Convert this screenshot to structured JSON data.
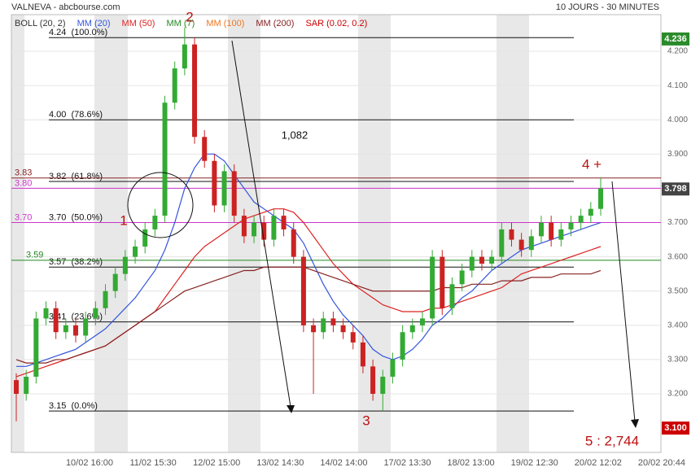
{
  "chart_data": {
    "type": "candlestick",
    "title": "VALNEVA - abcbourse.com",
    "subtitle": "10 JOURS - 30 MINUTES",
    "legend": [
      {
        "name": "BOLL (20, 2)",
        "color": "#333333"
      },
      {
        "name": "MM (20)",
        "color": "#3355dd"
      },
      {
        "name": "MM (50)",
        "color": "#dd2222"
      },
      {
        "name": "MM (7)",
        "color": "#228822"
      },
      {
        "name": "MM (100)",
        "color": "#ee7722"
      },
      {
        "name": "MM (200)",
        "color": "#882222"
      },
      {
        "name": "SAR (0.02, 0.2)",
        "color": "#cc0000"
      }
    ],
    "x_labels": [
      "10/02 16:00",
      "11/02 15:30",
      "12/02 15:00",
      "13/02 14:30",
      "14/02 14:00",
      "17/02 13:30",
      "18/02 13:00",
      "19/02 12:30",
      "20/02 12:02",
      "20/02 20:44"
    ],
    "ylim": [
      3.029,
      4.307
    ],
    "yticks": [
      {
        "value": 3.2,
        "label": "3.200"
      },
      {
        "value": 3.3,
        "label": "3.300"
      },
      {
        "value": 3.4,
        "label": "3.400"
      },
      {
        "value": 3.5,
        "label": "3.500"
      },
      {
        "value": 3.6,
        "label": "3.600"
      },
      {
        "value": 3.7,
        "label": "3.700"
      },
      {
        "value": 3.8,
        "label": "3.800"
      },
      {
        "value": 3.9,
        "label": "3.900"
      },
      {
        "value": 4.0,
        "label": "4.000"
      },
      {
        "value": 4.1,
        "label": "4.100"
      },
      {
        "value": 4.2,
        "label": "4.200"
      }
    ],
    "grid": true,
    "up_color": "#33aa33",
    "down_color": "#cc2222",
    "open": [
      3.24,
      3.2,
      3.25,
      3.42,
      3.45,
      3.38,
      3.4,
      3.37,
      3.42,
      3.45,
      3.5,
      3.55,
      3.6,
      3.63,
      3.68,
      3.72,
      4.05,
      4.15,
      4.22,
      3.95,
      3.88,
      3.75,
      3.85,
      3.72,
      3.66,
      3.7,
      3.65,
      3.72,
      3.68,
      3.6,
      3.4,
      3.38,
      3.42,
      3.4,
      3.38,
      3.35,
      3.28,
      3.2,
      3.25,
      3.3,
      3.38,
      3.4,
      3.42,
      3.6,
      3.45,
      3.52,
      3.56,
      3.6,
      3.58,
      3.6,
      3.68,
      3.65,
      3.62,
      3.66,
      3.7,
      3.65,
      3.68,
      3.7,
      3.72,
      3.74
    ],
    "high": [
      3.26,
      3.27,
      3.44,
      3.47,
      3.47,
      3.42,
      3.42,
      3.44,
      3.47,
      3.52,
      3.57,
      3.62,
      3.65,
      3.7,
      3.74,
      4.07,
      4.17,
      4.27,
      4.24,
      3.97,
      3.9,
      3.87,
      3.87,
      3.74,
      3.72,
      3.72,
      3.74,
      3.74,
      3.7,
      3.62,
      3.42,
      3.44,
      3.44,
      3.42,
      3.4,
      3.37,
      3.3,
      3.27,
      3.32,
      3.4,
      3.42,
      3.44,
      3.62,
      3.62,
      3.54,
      3.58,
      3.62,
      3.62,
      3.62,
      3.7,
      3.7,
      3.67,
      3.68,
      3.72,
      3.72,
      3.7,
      3.72,
      3.74,
      3.76,
      3.83
    ],
    "low": [
      3.12,
      3.18,
      3.23,
      3.4,
      3.36,
      3.36,
      3.35,
      3.35,
      3.4,
      3.43,
      3.48,
      3.53,
      3.58,
      3.61,
      3.66,
      3.7,
      4.03,
      4.13,
      3.93,
      3.86,
      3.73,
      3.73,
      3.7,
      3.64,
      3.64,
      3.63,
      3.63,
      3.66,
      3.58,
      3.38,
      3.2,
      3.36,
      3.38,
      3.36,
      3.33,
      3.26,
      3.18,
      3.15,
      3.23,
      3.28,
      3.36,
      3.38,
      3.4,
      3.43,
      3.43,
      3.5,
      3.54,
      3.56,
      3.56,
      3.58,
      3.63,
      3.6,
      3.6,
      3.64,
      3.63,
      3.63,
      3.66,
      3.68,
      3.7,
      3.72
    ],
    "close": [
      3.2,
      3.25,
      3.42,
      3.45,
      3.38,
      3.4,
      3.37,
      3.42,
      3.45,
      3.5,
      3.55,
      3.6,
      3.63,
      3.68,
      3.72,
      4.05,
      4.15,
      4.22,
      3.95,
      3.88,
      3.75,
      3.85,
      3.72,
      3.66,
      3.7,
      3.65,
      3.72,
      3.68,
      3.6,
      3.4,
      3.38,
      3.42,
      3.4,
      3.38,
      3.35,
      3.28,
      3.2,
      3.25,
      3.3,
      3.38,
      3.4,
      3.42,
      3.6,
      3.45,
      3.52,
      3.56,
      3.6,
      3.58,
      3.6,
      3.68,
      3.65,
      3.62,
      3.66,
      3.7,
      3.65,
      3.68,
      3.7,
      3.72,
      3.74,
      3.8
    ],
    "series": [
      {
        "name": "MM (20)",
        "color": "#3355dd",
        "values": [
          3.28,
          3.28,
          3.29,
          3.3,
          3.31,
          3.32,
          3.33,
          3.35,
          3.37,
          3.39,
          3.42,
          3.45,
          3.48,
          3.52,
          3.56,
          3.62,
          3.7,
          3.8,
          3.86,
          3.9,
          3.9,
          3.88,
          3.84,
          3.8,
          3.76,
          3.74,
          3.72,
          3.7,
          3.68,
          3.64,
          3.58,
          3.52,
          3.47,
          3.43,
          3.4,
          3.37,
          3.33,
          3.31,
          3.3,
          3.31,
          3.33,
          3.36,
          3.4,
          3.42,
          3.45,
          3.48,
          3.5,
          3.53,
          3.56,
          3.58,
          3.6,
          3.62,
          3.63,
          3.64,
          3.65,
          3.66,
          3.67,
          3.68,
          3.69,
          3.7
        ]
      },
      {
        "name": "MM (50)",
        "color": "#dd2222",
        "values": [
          3.25,
          3.26,
          3.27,
          3.28,
          3.29,
          3.3,
          3.31,
          3.32,
          3.33,
          3.34,
          3.36,
          3.38,
          3.4,
          3.42,
          3.44,
          3.48,
          3.52,
          3.56,
          3.6,
          3.63,
          3.65,
          3.67,
          3.69,
          3.71,
          3.72,
          3.73,
          3.74,
          3.74,
          3.73,
          3.7,
          3.66,
          3.62,
          3.58,
          3.55,
          3.52,
          3.5,
          3.48,
          3.46,
          3.45,
          3.44,
          3.44,
          3.44,
          3.45,
          3.45,
          3.46,
          3.47,
          3.48,
          3.49,
          3.5,
          3.51,
          3.53,
          3.55,
          3.56,
          3.57,
          3.58,
          3.59,
          3.6,
          3.61,
          3.62,
          3.63
        ]
      },
      {
        "name": "MM (200)",
        "color": "#882222",
        "values": [
          3.3,
          3.29,
          3.29,
          3.29,
          3.3,
          3.3,
          3.31,
          3.32,
          3.33,
          3.34,
          3.36,
          3.38,
          3.4,
          3.42,
          3.44,
          3.46,
          3.48,
          3.5,
          3.51,
          3.52,
          3.53,
          3.54,
          3.55,
          3.56,
          3.56,
          3.57,
          3.57,
          3.57,
          3.57,
          3.57,
          3.56,
          3.55,
          3.54,
          3.53,
          3.52,
          3.51,
          3.5,
          3.5,
          3.5,
          3.5,
          3.5,
          3.5,
          3.5,
          3.51,
          3.51,
          3.51,
          3.52,
          3.52,
          3.52,
          3.53,
          3.53,
          3.53,
          3.54,
          3.54,
          3.54,
          3.55,
          3.55,
          3.55,
          3.55,
          3.56
        ]
      }
    ],
    "fibonacci": [
      {
        "value": 4.24,
        "label": "4.24  (100.0%)"
      },
      {
        "value": 4.0,
        "label": "4.00  (78.6%)"
      },
      {
        "value": 3.82,
        "label": "3.82  (61.8%)"
      },
      {
        "value": 3.7,
        "label": "3.70  (50.0%)"
      },
      {
        "value": 3.57,
        "label": "3.57  (38.2%)"
      },
      {
        "value": 3.41,
        "label": "3.41  (23.6%)"
      },
      {
        "value": 3.15,
        "label": "3.15  (0.0%)"
      }
    ],
    "levels": [
      {
        "value": 3.83,
        "label": "3.83",
        "color": "#882222"
      },
      {
        "value": 3.8,
        "label": "3.80",
        "color": "#cc33cc"
      },
      {
        "value": 3.7,
        "label": "3.70",
        "color": "#cc33cc"
      },
      {
        "value": 3.59,
        "label": "3.59",
        "color": "#228822"
      }
    ],
    "markers": [
      {
        "value": 4.236,
        "label": "4.236",
        "color": "#2a8a2a"
      },
      {
        "value": 3.798,
        "label": "3.798",
        "color": "#444444"
      },
      {
        "value": 3.1,
        "label": "3.100",
        "color": "#cc0000"
      }
    ],
    "annotations": [
      "1",
      "2",
      "3",
      "4 +",
      "5 : 2,744",
      "1,082"
    ]
  }
}
